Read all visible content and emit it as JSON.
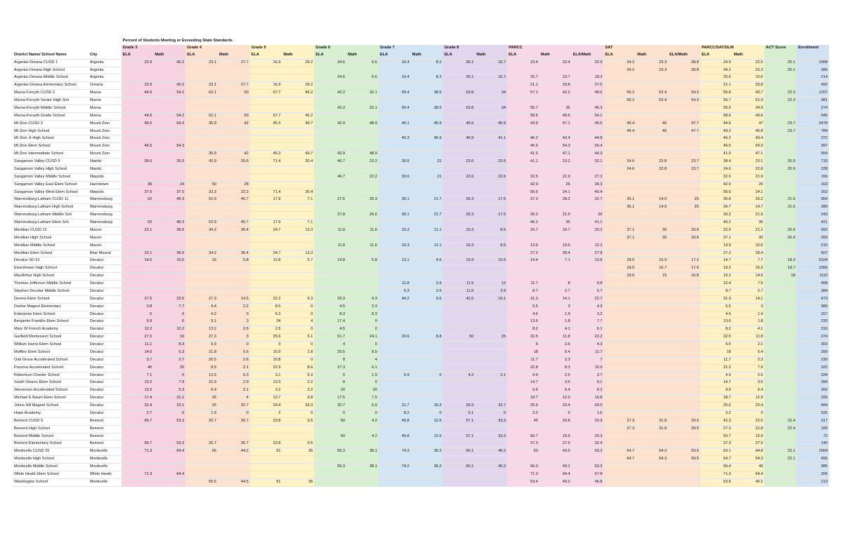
{
  "title": "Percent of Students Meeting or Exceeding State Standards",
  "groups": [
    "Grade 3",
    "Grade 4",
    "Grade 5",
    "Grade 6",
    "Grade 7",
    "Grade 8",
    "PARCC",
    "SAT",
    "PARCC/SAT/DLM",
    "ACT Score",
    "Enrollment"
  ],
  "headers": [
    "District Name/ School Name",
    "City",
    "ELA",
    "Math",
    "ELA",
    "Math",
    "ELA",
    "Math",
    "ELA",
    "Math",
    "ELA",
    "Math",
    "ELA",
    "Math",
    "ELA",
    "Math",
    "ELA/Math",
    "ELA",
    "Math",
    "ELA/Math",
    "ELA",
    "Math",
    "",
    ""
  ],
  "colors": {
    "grade3": "#f7d3e1",
    "grade4": "#fde3cf",
    "grade5": "#fff2c4",
    "grade6": "#d9efd1",
    "grade7": "#d3e4f4",
    "grade8": "#e2d6ee"
  },
  "rows": [
    [
      "Argenta-Oreana CUSD 1",
      "Argenta",
      "22.9",
      "42.2",
      "23.1",
      "27.7",
      "16.9",
      "29.2",
      "24.6",
      "6.6",
      "16.4",
      "8.2",
      "36.1",
      "16.7",
      "23.4",
      "22.4",
      "22.9",
      "34.2",
      "23.3",
      "28.8",
      "24.9",
      "22.5",
      "20.1",
      "1008"
    ],
    [
      "Argenta-Oreana High School",
      "Argenta",
      "",
      "",
      "",
      "",
      "",
      "",
      "",
      "",
      "",
      "",
      "",
      "",
      "",
      "",
      "",
      "34.2",
      "23.3",
      "28.8",
      "34.2",
      "23.3",
      "20.1",
      "285"
    ],
    [
      "Argenta-Oreana Middle School",
      "Argenta",
      "",
      "",
      "",
      "",
      "",
      "",
      "24.6",
      "6.6",
      "16.4",
      "8.2",
      "36.1",
      "16.7",
      "25.7",
      "10.7",
      "18.2",
      "",
      "",
      "",
      "25.6",
      "10.6",
      "",
      "214"
    ],
    [
      "Argenta-Oreana Elementary School",
      "Oreana",
      "22.9",
      "42.2",
      "23.1",
      "27.7",
      "16.9",
      "29.2",
      "",
      "",
      "",
      "",
      "",
      "",
      "21.1",
      "33.8",
      "27.5",
      "",
      "",
      "",
      "21.1",
      "33.8",
      "",
      "492"
    ],
    [
      "Maroa Forsyth CUSD 2",
      "Maroa",
      "44.6",
      "54.2",
      "62.1",
      "50",
      "67.7",
      "45.2",
      "42.2",
      "32.1",
      "59.4",
      "38.5",
      "63.8",
      "34",
      "57.1",
      "42.2",
      "49.6",
      "56.2",
      "52.4",
      "54.3",
      "56.8",
      "43.7",
      "22.3",
      "1207"
    ],
    [
      "Maroa-Forsyth Senior High Sch",
      "Maroa",
      "",
      "",
      "",
      "",
      "",
      "",
      "",
      "",
      "",
      "",
      "",
      "",
      "",
      "",
      "",
      "56.2",
      "52.4",
      "54.3",
      "55.7",
      "51.9",
      "22.3",
      "381"
    ],
    [
      "Maroa-Forsyth Middle School",
      "Maroa",
      "",
      "",
      "",
      "",
      "",
      "",
      "42.2",
      "32.1",
      "59.4",
      "38.5",
      "63.8",
      "34",
      "55.7",
      "35",
      "45.3",
      "",
      "",
      "",
      "55.5",
      "34.9",
      "",
      "274"
    ],
    [
      "Maroa-Forsyth Grade School",
      "Maroa",
      "44.6",
      "54.2",
      "62.1",
      "50",
      "67.7",
      "45.2",
      "",
      "",
      "",
      "",
      "",
      "",
      "58.6",
      "49.6",
      "54.1",
      "",
      "",
      "",
      "58.6",
      "49.6",
      "",
      "545"
    ],
    [
      "Mt Zion CUSD 3",
      "Mount Zion",
      "46.5",
      "54.3",
      "35.9",
      "42",
      "45.3",
      "49.7",
      "42.9",
      "48.9",
      "45.1",
      "45.9",
      "46.6",
      "40.9",
      "43.9",
      "47.1",
      "45.5",
      "49.4",
      "46",
      "47.7",
      "44.6",
      "47",
      "23.7",
      "2478"
    ],
    [
      "Mt Zion High School",
      "Mount Zion",
      "",
      "",
      "",
      "",
      "",
      "",
      "",
      "",
      "",
      "",
      "",
      "",
      "",
      "",
      "",
      "49.4",
      "46",
      "47.7",
      "49.2",
      "45.8",
      "23.7",
      "784"
    ],
    [
      "Mt Zion Jr High School",
      "Mount Zion",
      "",
      "",
      "",
      "",
      "",
      "",
      "",
      "",
      "45.3",
      "45.9",
      "46.9",
      "41.1",
      "46.2",
      "43.4",
      "44.8",
      "",
      "",
      "",
      "46.2",
      "43.4",
      "",
      "372"
    ],
    [
      "Mt Zion Elem School",
      "Mount Zion",
      "46.5",
      "54.3",
      "",
      "",
      "",
      "",
      "",
      "",
      "",
      "",
      "",
      "",
      "46.5",
      "54.3",
      "50.4",
      "",
      "",
      "",
      "46.5",
      "54.3",
      "",
      "397"
    ],
    [
      "Mt Zion Intermediate School",
      "Mount Zion",
      "",
      "",
      "35.9",
      "42",
      "45.3",
      "49.7",
      "42.9",
      "48.9",
      "",
      "",
      "",
      "",
      "41.5",
      "47.1",
      "44.3",
      "",
      "",
      "",
      "41.5",
      "47.1",
      "",
      "554"
    ],
    [
      "Sangamon Valley CUSD 9",
      "Niantic",
      "36.6",
      "29.3",
      "42.9",
      "25.6",
      "71.4",
      "20.4",
      "46.7",
      "22.2",
      "30.6",
      "21",
      "22.6",
      "22.6",
      "41.1",
      "23.2",
      "32.1",
      "24.6",
      "22.8",
      "23.7",
      "38.4",
      "23.1",
      "20.9",
      "710"
    ],
    [
      "Sangamon Valley High School",
      "Niantic",
      "",
      "",
      "",
      "",
      "",
      "",
      "",
      "",
      "",
      "",
      "",
      "",
      "",
      "",
      "",
      "24.6",
      "22.8",
      "23.7",
      "24.6",
      "22.8",
      "20.9",
      "228"
    ],
    [
      "Sangamon Valley Middle School",
      "Illiopolis",
      "",
      "",
      "",
      "",
      "",
      "",
      "46.7",
      "22.2",
      "30.6",
      "21",
      "22.6",
      "22.6",
      "32.5",
      "21.9",
      "27.2",
      "",
      "",
      "",
      "32.5",
      "21.9",
      "",
      "156"
    ],
    [
      "Sangamon Valley East Elem School",
      "Harristown",
      "36",
      "24",
      "50",
      "28",
      "",
      "",
      "",
      "",
      "",
      "",
      "",
      "",
      "42.9",
      "26",
      "34.3",
      "",
      "",
      "",
      "42.9",
      "26",
      "",
      "163"
    ],
    [
      "Sangamon Valley West Elem School",
      "Illiopolis",
      "37.5",
      "37.5",
      "33.3",
      "22.2",
      "71.4",
      "20.4",
      "",
      "",
      "",
      "",
      "",
      "",
      "56.6",
      "24.1",
      "40.4",
      "",
      "",
      "",
      "56.6",
      "24.1",
      "",
      "162"
    ],
    [
      "Warrensburg-Latham CUSD 11",
      "Warrensburg",
      "62",
      "49.3",
      "52.9",
      "45.7",
      "17.9",
      "7.1",
      "27.5",
      "26.3",
      "36.1",
      "21.7",
      "26.3",
      "17.5",
      "37.3",
      "28.2",
      "32.7",
      "35.1",
      "14.9",
      "25",
      "36.8",
      "26.2",
      "21.6",
      "954"
    ],
    [
      "Warrensburg-Latham High School",
      "Warrensburg",
      "",
      "",
      "",
      "",
      "",
      "",
      "",
      "",
      "",
      "",
      "",
      "",
      "",
      "",
      "",
      "35.1",
      "14.9",
      "25",
      "34.7",
      "14.7",
      "21.6",
      "289"
    ],
    [
      "Warrensburg-Latham Middle Sch",
      "Warrensburg",
      "",
      "",
      "",
      "",
      "",
      "",
      "27.8",
      "26.6",
      "36.1",
      "21.7",
      "26.3",
      "17.5",
      "30.2",
      "21.9",
      "26",
      "",
      "",
      "",
      "30.2",
      "21.9",
      "",
      "243"
    ],
    [
      "Warrensburg-Latham Elem Sch",
      "Warrensburg",
      "62",
      "49.3",
      "52.9",
      "45.7",
      "17.9",
      "7.1",
      "",
      "",
      "",
      "",
      "",
      "",
      "46.2",
      "36",
      "41.1",
      "",
      "",
      "",
      "46.2",
      "36",
      "",
      "421"
    ],
    [
      "Meridian CUSD 15",
      "Macon",
      "22.1",
      "36.6",
      "34.2",
      "35.4",
      "24.7",
      "13.3",
      "11.8",
      "11.6",
      "15.3",
      "11.1",
      "15.3",
      "8.5",
      "20.7",
      "19.7",
      "20.2",
      "37.1",
      "30",
      "33.6",
      "22.9",
      "21.1",
      "20.9",
      "992"
    ],
    [
      "Meridian High School",
      "Macon",
      "",
      "",
      "",
      "",
      "",
      "",
      "",
      "",
      "",
      "",
      "",
      "",
      "",
      "",
      "",
      "37.1",
      "30",
      "33.6",
      "37.1",
      "30",
      "20.9",
      "269"
    ],
    [
      "Meridian Middle School",
      "Macon",
      "",
      "",
      "",
      "",
      "",
      "",
      "11.8",
      "11.6",
      "15.3",
      "11.1",
      "15.3",
      "8.5",
      "13.9",
      "10.6",
      "12.2",
      "",
      "",
      "",
      "13.9",
      "10.6",
      "",
      "215"
    ],
    [
      "Meridian Elem School",
      "Blue Mound",
      "22.1",
      "36.6",
      "34.2",
      "35.4",
      "24.7",
      "13.3",
      "",
      "",
      "",
      "",
      "",
      "",
      "27.2",
      "28.4",
      "27.8",
      "",
      "",
      "",
      "27.2",
      "28.4",
      "",
      "507"
    ],
    [
      "Decatur SD 61",
      "Decatur",
      "14.5",
      "10.5",
      "15",
      "5.8",
      "12.8",
      "5.7",
      "14.8",
      "5.8",
      "13.1",
      "4.6",
      "15.9",
      "10.6",
      "14.4",
      "7.1",
      "10.8",
      "18.5",
      "15.9",
      "17.2",
      "14.7",
      "7.7",
      "18.3",
      "9104"
    ],
    [
      "Eisenhower High School",
      "Decatur",
      "",
      "",
      "",
      "",
      "",
      "",
      "",
      "",
      "",
      "",
      "",
      "",
      "",
      "",
      "",
      "18.5",
      "16.7",
      "17.6",
      "19.2",
      "16.2",
      "18.7",
      "1056"
    ],
    [
      "MacArthur High School",
      "Decatur",
      "",
      "",
      "",
      "",
      "",
      "",
      "",
      "",
      "",
      "",
      "",
      "",
      "",
      "",
      "",
      "18.6",
      "15",
      "16.8",
      "19.2",
      "14.6",
      "18",
      "1110"
    ],
    [
      "Thomas Jefferson Middle School",
      "Decatur",
      "",
      "",
      "",
      "",
      "",
      "",
      "",
      "",
      "11.8",
      "3.9",
      "11.5",
      "12",
      "11.7",
      "8",
      "9.8",
      "",
      "",
      "",
      "12.4",
      "7.5",
      "",
      "468"
    ],
    [
      "Stephen Decatur Middle School",
      "Decatur",
      "",
      "",
      "",
      "",
      "",
      "",
      "",
      "",
      "6.3",
      "2.5",
      "11.6",
      "2.9",
      "8.7",
      "2.7",
      "5.7",
      "",
      "",
      "",
      "8.7",
      "2.7",
      "",
      "384"
    ],
    [
      "Dennis Elem School",
      "Decatur",
      "27.5",
      "23.5",
      "27.3",
      "14.5",
      "22.2",
      "9.3",
      "25.9",
      "9.3",
      "44.2",
      "9.6",
      "42.6",
      "19.1",
      "31.3",
      "14.1",
      "22.7",
      "",
      "",
      "",
      "31.3",
      "14.1",
      "",
      "473"
    ],
    [
      "Durfee Magnet Elementary",
      "Decatur",
      "3.8",
      "7.7",
      "4.4",
      "2.2",
      "8.5",
      "0",
      "4.5",
      "2.3",
      "",
      "",
      "",
      "",
      "5.5",
      "3",
      "4.3",
      "",
      "",
      "",
      "5.5",
      "3",
      "",
      "389"
    ],
    [
      "Enterprise Elem School",
      "Decatur",
      "0",
      "0",
      "4.2",
      "0",
      "6.3",
      "0",
      "8.3",
      "8.3",
      "",
      "",
      "",
      "",
      "4.6",
      "1.9",
      "3.2",
      "",
      "",
      "",
      "4.6",
      "1.9",
      "",
      "257"
    ],
    [
      "Benjamin Franklin Elem School",
      "Decatur",
      "6.9",
      "0",
      "9.1",
      "3",
      "24",
      "4",
      "17.4",
      "0",
      "",
      "",
      "",
      "",
      "13.6",
      "1.8",
      "7.7",
      "",
      "",
      "",
      "13.6",
      "1.8",
      "",
      "220"
    ],
    [
      "Mary W French Academy",
      "Decatur",
      "12.2",
      "12.2",
      "13.2",
      "2.6",
      "2.5",
      "0",
      "4.5",
      "0",
      "",
      "",
      "",
      "",
      "8.2",
      "4.1",
      "6.1",
      "",
      "",
      "",
      "8.2",
      "4.1",
      "",
      "310"
    ],
    [
      "Garfield Montessori School",
      "Decatur",
      "27.5",
      "10",
      "27.3",
      "3",
      "25.6",
      "5.1",
      "51.7",
      "24.1",
      "20.6",
      "8.8",
      "50",
      "25",
      "32.5",
      "11.8",
      "22.2",
      "",
      "",
      "",
      "32.5",
      "11.8",
      "",
      "374"
    ],
    [
      "William Harris Elem School",
      "Decatur",
      "11.1",
      "8.3",
      "5.9",
      "0",
      "0",
      "0",
      "4",
      "0",
      "",
      "",
      "",
      "",
      "6",
      "2.6",
      "4.3",
      "",
      "",
      "",
      "5.5",
      "2.1",
      "",
      "303"
    ],
    [
      "Muffley Elem School",
      "Decatur",
      "14.6",
      "6.3",
      "21.8",
      "5.6",
      "10.9",
      "1.8",
      "25.5",
      "8.5",
      "",
      "",
      "",
      "",
      "18",
      "5.4",
      "11.7",
      "",
      "",
      "",
      "18",
      "5.4",
      "",
      "399"
    ],
    [
      "Oak Grove Accelerated School",
      "Decatur",
      "3.7",
      "3.7",
      "20.5",
      "2.6",
      "10.8",
      "0",
      "8",
      "4",
      "",
      "",
      "",
      "",
      "11.7",
      "2.3",
      "7",
      "",
      "",
      "",
      "11.7",
      "2.3",
      "",
      "230"
    ],
    [
      "Parsons Accelerated School",
      "Decatur",
      "40",
      "20",
      "8.5",
      "2.1",
      "22.9",
      "8.6",
      "27.3",
      "6.1",
      "",
      "",
      "",
      "",
      "22.8",
      "8.3",
      "15.5",
      "",
      "",
      "",
      "21.2",
      "7.9",
      "",
      "322"
    ],
    [
      "Robertson Charter School",
      "Decatur",
      "7.1",
      "0",
      "12.5",
      "6.3",
      "3.1",
      "6.3",
      "0",
      "1.9",
      "5.9",
      "0",
      "4.2",
      "2.1",
      "4.9",
      "2.5",
      "3.7",
      "",
      "",
      "",
      "4.9",
      "2.5",
      "",
      "334"
    ],
    [
      "South Shores Elem School",
      "Decatur",
      "13.2",
      "7.9",
      "22.9",
      "2.9",
      "13.3",
      "2.2",
      "8",
      "0",
      "",
      "",
      "",
      "",
      "14.7",
      "3.5",
      "9.1",
      "",
      "",
      "",
      "14.7",
      "3.5",
      "",
      "284"
    ],
    [
      "Stevenson Accelerated School",
      "Decatur",
      "13.2",
      "5.3",
      "6.4",
      "2.1",
      "3.2",
      "3.2",
      "20",
      "20",
      "",
      "",
      "",
      "",
      "9.9",
      "6.4",
      "8.2",
      "",
      "",
      "",
      "9.9",
      "6.4",
      "",
      "262"
    ],
    [
      "Michael E Baum Elem School",
      "Decatur",
      "17.4",
      "31.1",
      "26",
      "4",
      "13.7",
      "9.8",
      "17.5",
      "7.5",
      "",
      "",
      "",
      "",
      "18.7",
      "12.9",
      "15.8",
      "",
      "",
      "",
      "18.7",
      "12.9",
      "",
      "320"
    ],
    [
      "Johns Hill Magnet School",
      "Decatur",
      "31.4",
      "23.1",
      "25",
      "32.7",
      "29.4",
      "33.3",
      "20.7",
      "6.9",
      "21.7",
      "15.3",
      "26.9",
      "32.7",
      "25.6",
      "23.4",
      "24.5",
      "",
      "",
      "",
      "25.6",
      "23.4",
      "",
      "494"
    ],
    [
      "Hope Academy",
      "Decatur",
      "2.7",
      "0",
      "1.9",
      "0",
      "2",
      "0",
      "0",
      "0",
      "8.2",
      "0",
      "5.1",
      "0",
      "3.2",
      "0",
      "1.6",
      "",
      "",
      "",
      "3.2",
      "0",
      "",
      "525"
    ],
    [
      "Bement CUSD 5",
      "Bement",
      "66.7",
      "53.3",
      "26.7",
      "26.7",
      "23.8",
      "9.5",
      "50",
      "4.2",
      "45.8",
      "12.5",
      "57.1",
      "33.3",
      "45",
      "20.8",
      "32.9",
      "27.3",
      "31.8",
      "29.5",
      "42.3",
      "22.5",
      "22.4",
      "317"
    ],
    [
      "Bement High School",
      "Bement",
      "",
      "",
      "",
      "",
      "",
      "",
      "",
      "",
      "",
      "",
      "",
      "",
      "",
      "",
      "",
      "27.3",
      "31.8",
      "29.5",
      "27.3",
      "31.8",
      "22.4",
      "100"
    ],
    [
      "Bement Middle School",
      "Bement",
      "",
      "",
      "",
      "",
      "",
      "",
      "50",
      "4.2",
      "45.8",
      "12.5",
      "57.1",
      "33.3",
      "50.7",
      "15.9",
      "33.3",
      "",
      "",
      "",
      "50.7",
      "15.9",
      "",
      "72"
    ],
    [
      "Bement Elementary School",
      "Bement",
      "66.7",
      "53.3",
      "26.7",
      "26.7",
      "23.8",
      "9.5",
      "",
      "",
      "",
      "",
      "",
      "",
      "37.3",
      "27.5",
      "32.4",
      "",
      "",
      "",
      "37.3",
      "27.5",
      "",
      "145"
    ],
    [
      "Monticello CUSD 25",
      "Monticello",
      "71.3",
      "64.4",
      "55",
      "44.2",
      "51",
      "35",
      "65.3",
      "38.1",
      "74.2",
      "35.2",
      "60.1",
      "46.2",
      "63",
      "43.5",
      "53.2",
      "64.7",
      "54.3",
      "59.5",
      "63.1",
      "44.8",
      "22.1",
      "1564"
    ],
    [
      "Monticello High School",
      "Monticello",
      "",
      "",
      "",
      "",
      "",
      "",
      "",
      "",
      "",
      "",
      "",
      "",
      "",
      "",
      "",
      "64.7",
      "54.3",
      "59.5",
      "64.7",
      "54.3",
      "22.1",
      "495"
    ],
    [
      "Monticello Middle School",
      "Monticello",
      "",
      "",
      "",
      "",
      "",
      "",
      "65.3",
      "38.1",
      "74.2",
      "35.2",
      "60.1",
      "46.2",
      "66.3",
      "40.1",
      "53.2",
      "",
      "",
      "",
      "66.4",
      "40",
      "",
      "385"
    ],
    [
      "White Heath Elem School",
      "White Heath",
      "71.3",
      "64.4",
      "",
      "",
      "",
      "",
      "",
      "",
      "",
      "",
      "",
      "",
      "71.3",
      "64.4",
      "67.8",
      "",
      "",
      "",
      "71.3",
      "64.4",
      "",
      "206"
    ],
    [
      "Washington School",
      "Monticello",
      "",
      "",
      "55.5",
      "44.5",
      "51",
      "35",
      "",
      "",
      "",
      "",
      "",
      "",
      "53.4",
      "40.2",
      "46.8",
      "",
      "",
      "",
      "53.6",
      "40.1",
      "",
      "213"
    ]
  ]
}
